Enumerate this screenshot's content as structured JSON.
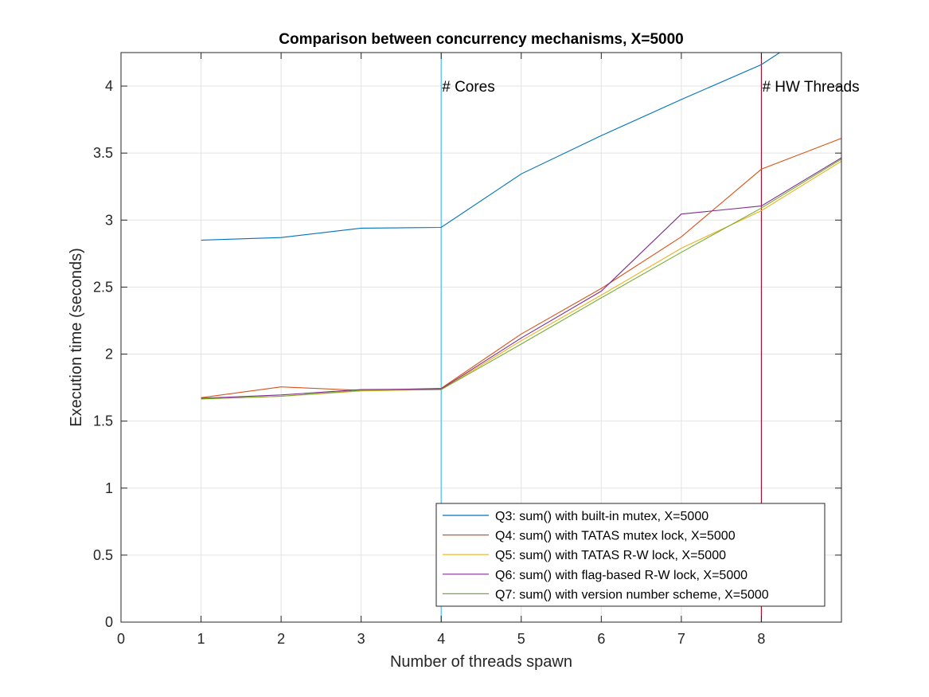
{
  "chart_data": {
    "type": "line",
    "title": "Comparison between concurrency mechanisms, X=5000",
    "xlabel": "Number of threads spawn",
    "ylabel": "Execution time (seconds)",
    "xlim": [
      0,
      9
    ],
    "ylim": [
      0,
      4.25
    ],
    "xticks": [
      0,
      1,
      2,
      3,
      4,
      5,
      6,
      7,
      8
    ],
    "xtick_labels": [
      "0",
      "1",
      "2",
      "3",
      "4",
      "5",
      "6",
      "7",
      "8"
    ],
    "yticks": [
      0,
      0.5,
      1,
      1.5,
      2,
      2.5,
      3,
      3.5,
      4
    ],
    "ytick_labels": [
      "0",
      "0.5",
      "1",
      "1.5",
      "2",
      "2.5",
      "3",
      "3.5",
      "4"
    ],
    "grid": true,
    "legend_position": "bottom-right",
    "x": [
      1,
      2,
      3,
      4,
      5,
      6,
      7,
      8,
      9
    ],
    "series": [
      {
        "name": "Q3: sum() with built-in mutex, X=5000",
        "color": "#0072BD",
        "values": [
          2.85,
          2.87,
          2.94,
          2.945,
          3.345,
          3.63,
          3.9,
          4.16,
          4.55
        ]
      },
      {
        "name": "Q4: sum() with TATAS mutex lock, X=5000",
        "color": "#D95319",
        "values": [
          1.675,
          1.755,
          1.73,
          1.745,
          2.15,
          2.49,
          2.875,
          3.38,
          3.61
        ]
      },
      {
        "name": "Q5: sum() with TATAS R-W lock, X=5000",
        "color": "#EDB120",
        "values": [
          1.665,
          1.685,
          1.725,
          1.735,
          2.1,
          2.44,
          2.79,
          3.07,
          3.44
        ]
      },
      {
        "name": "Q6: sum() with flag-based R-W lock, X=5000",
        "color": "#7E2F8E",
        "values": [
          1.67,
          1.695,
          1.735,
          1.74,
          2.12,
          2.47,
          3.045,
          3.105,
          3.465
        ]
      },
      {
        "name": "Q7: sum() with version number scheme, X=5000",
        "color": "#77AC30",
        "values": [
          1.665,
          1.685,
          1.73,
          1.735,
          2.075,
          2.42,
          2.76,
          3.09,
          3.455
        ]
      }
    ],
    "annotations": [
      {
        "text": "# Cores",
        "x": 4,
        "color": "#4DBEEE"
      },
      {
        "text": "# HW Threads",
        "x": 8,
        "color": "#A2142F"
      }
    ]
  }
}
